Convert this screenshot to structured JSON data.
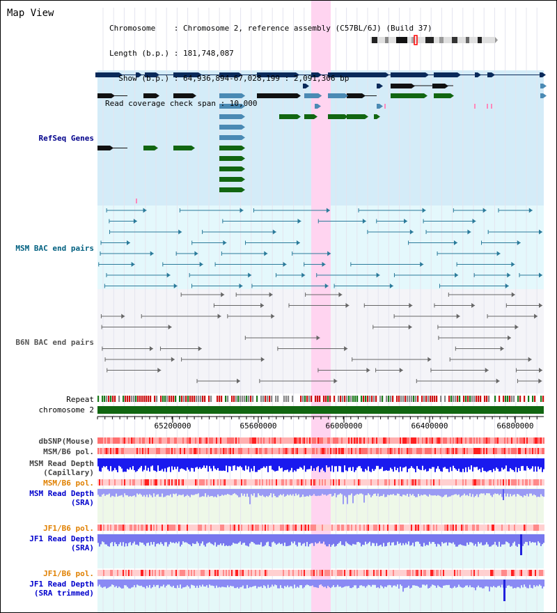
{
  "title": "Map View",
  "info": {
    "chromosome": "Chromosome    : Chromosome 2, reference assembly (C57BL/6J) (Build 37)",
    "length": "Length (b.p.) : 181,748,087",
    "show": "  Show (b.p.) : 64,936,894-67,028,199 : 2,091,306 bp",
    "coverage": "Read coverage check span : 10,000"
  },
  "axis": {
    "ticks": [
      "65200000",
      "65600000",
      "66000000",
      "66400000",
      "66800000"
    ]
  },
  "tracks": {
    "refseq": "RefSeq Genes",
    "msm_bac": "MSM BAC end pairs",
    "b6n_bac": "B6N BAC end pairs",
    "repeat": "Repeat",
    "chromosome": "chromosome 2",
    "dbsnp": "dbSNP(Mouse)",
    "msm_pol1": "MSM/B6 pol.",
    "msm_depth_cap_1": "MSM Read Depth",
    "msm_depth_cap_2": "(Capillary)",
    "msm_pol2": "MSM/B6 pol.",
    "msm_depth_sra_1": "MSM Read Depth",
    "msm_depth_sra_2": "(SRA)",
    "jf1_pol1": "JF1/B6 pol.",
    "jf1_depth_sra_1": "JF1 Read Depth",
    "jf1_depth_sra_2": "(SRA)",
    "jf1_pol2": "JF1/B6 pol.",
    "jf1_depth_trim_1": "JF1 Read Depth",
    "jf1_depth_trim_2": "(SRA trimmed)"
  },
  "colors": {
    "refseq_label": "#00008b",
    "msm_bac_label": "#006080",
    "b6n_label": "#555555",
    "pol_orange": "#e08000",
    "depth_blue": "#0000cc",
    "highlight": "#ffccee"
  }
}
